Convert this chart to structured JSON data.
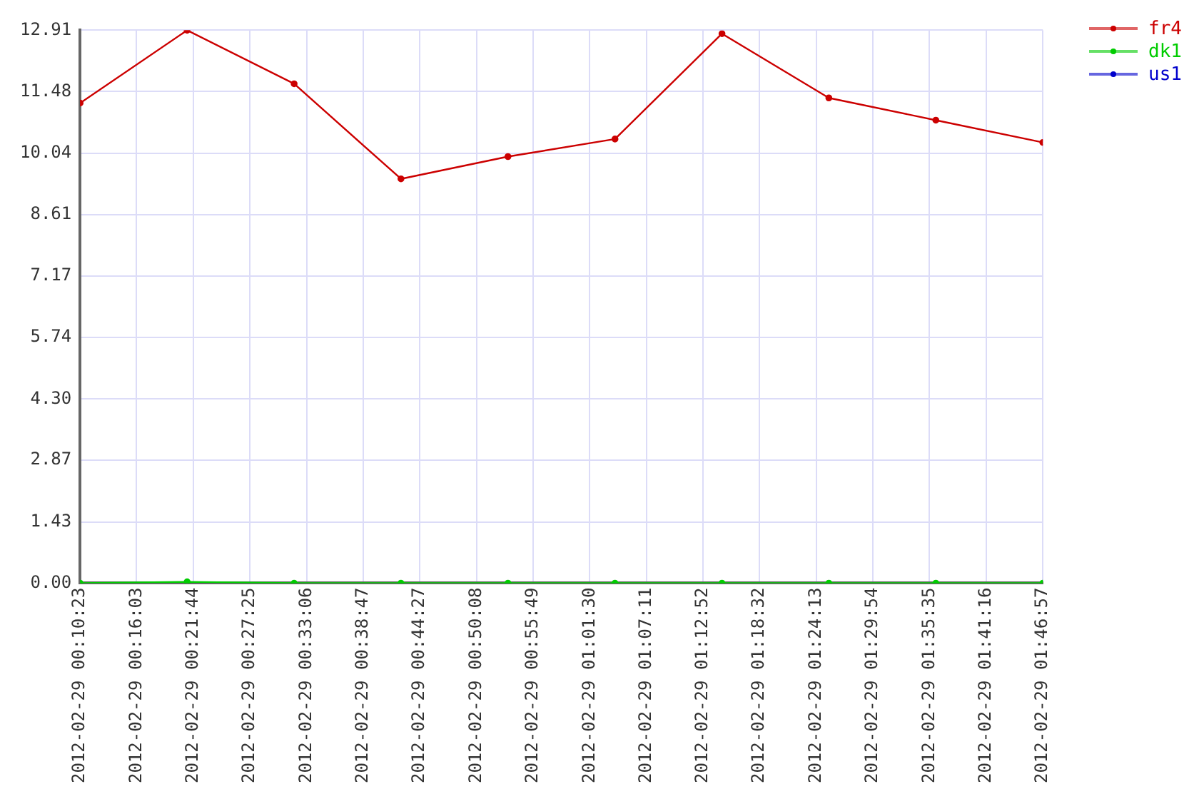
{
  "chart_data": {
    "type": "line",
    "x": [
      "2012-02-29T00:10:23",
      "2012-02-29T00:21:07",
      "2012-02-29T00:31:51",
      "2012-02-29T00:42:34",
      "2012-02-29T00:53:18",
      "2012-02-29T01:04:02",
      "2012-02-29T01:14:46",
      "2012-02-29T01:25:29",
      "2012-02-29T01:36:13",
      "2012-02-29T01:46:57"
    ],
    "series": [
      {
        "name": "fr4",
        "color": "#cc0000",
        "values": [
          11.21,
          12.91,
          11.66,
          9.44,
          9.96,
          10.37,
          12.83,
          11.33,
          10.81,
          10.29
        ]
      },
      {
        "name": "dk1",
        "color": "#00cc00",
        "values": [
          0,
          0.03,
          0,
          0,
          0,
          0,
          0,
          0,
          0,
          0
        ]
      },
      {
        "name": "us1",
        "color": "#0000cc",
        "values": [
          null,
          null,
          null,
          null,
          null,
          null,
          null,
          null,
          null,
          null
        ]
      }
    ],
    "xlim": [
      "2012-02-29T00:10:23",
      "2012-02-29T01:46:57"
    ],
    "xticks": [
      {
        "value": "2012-02-29T00:10:23",
        "label": "2012-02-29 00:10:23"
      },
      {
        "value": "2012-02-29T00:16:03",
        "label": "2012-02-29 00:16:03"
      },
      {
        "value": "2012-02-29T00:21:44",
        "label": "2012-02-29 00:21:44"
      },
      {
        "value": "2012-02-29T00:27:25",
        "label": "2012-02-29 00:27:25"
      },
      {
        "value": "2012-02-29T00:33:06",
        "label": "2012-02-29 00:33:06"
      },
      {
        "value": "2012-02-29T00:38:47",
        "label": "2012-02-29 00:38:47"
      },
      {
        "value": "2012-02-29T00:44:27",
        "label": "2012-02-29 00:44:27"
      },
      {
        "value": "2012-02-29T00:50:08",
        "label": "2012-02-29 00:50:08"
      },
      {
        "value": "2012-02-29T00:55:49",
        "label": "2012-02-29 00:55:49"
      },
      {
        "value": "2012-02-29T01:01:30",
        "label": "2012-02-29 01:01:30"
      },
      {
        "value": "2012-02-29T01:07:11",
        "label": "2012-02-29 01:07:11"
      },
      {
        "value": "2012-02-29T01:12:52",
        "label": "2012-02-29 01:12:52"
      },
      {
        "value": "2012-02-29T01:18:32",
        "label": "2012-02-29 01:18:32"
      },
      {
        "value": "2012-02-29T01:24:13",
        "label": "2012-02-29 01:24:13"
      },
      {
        "value": "2012-02-29T01:29:54",
        "label": "2012-02-29 01:29:54"
      },
      {
        "value": "2012-02-29T01:35:35",
        "label": "2012-02-29 01:35:35"
      },
      {
        "value": "2012-02-29T01:41:16",
        "label": "2012-02-29 01:41:16"
      },
      {
        "value": "2012-02-29T01:46:57",
        "label": "2012-02-29 01:46:57"
      }
    ],
    "ylim": [
      0,
      12.91
    ],
    "yticks": [
      {
        "value": 0,
        "label": "0.00"
      },
      1.43,
      2.87,
      {
        "value": 4.3,
        "label": "4.30"
      },
      5.74,
      7.17,
      8.61,
      10.04,
      11.48,
      12.91
    ],
    "grid": true,
    "legend": "top right",
    "marker": "circle",
    "line_style": "solid"
  }
}
